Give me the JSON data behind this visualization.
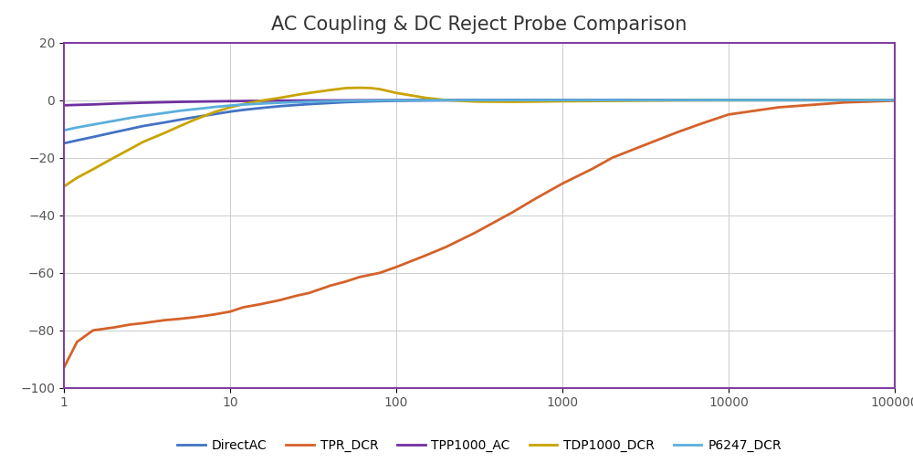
{
  "title": "AC Coupling & DC Reject Probe Comparison",
  "title_fontsize": 15,
  "xlim_log": [
    1,
    100000
  ],
  "ylim": [
    -100,
    20
  ],
  "yticks": [
    -100,
    -80,
    -60,
    -40,
    -20,
    0,
    20
  ],
  "xticks": [
    1,
    10,
    100,
    1000,
    10000,
    100000
  ],
  "background_color": "#ffffff",
  "plot_bg_color": "#ffffff",
  "border_color": "#8040a0",
  "grid_color": "#d0d0d0",
  "legend_labels": [
    "DirectAC",
    "TPR_DCR",
    "TPP1000_AC",
    "TDP1000_DCR",
    "P6247_DCR"
  ],
  "legend_colors": [
    "#4472c4",
    "#d4622a",
    "#7030a0",
    "#c8a400",
    "#5aafdb"
  ],
  "series": {
    "DirectAC": {
      "color": "#4472c4",
      "linewidth": 2.0,
      "x": [
        1,
        1.2,
        1.5,
        2,
        2.5,
        3,
        4,
        5,
        6,
        7,
        8,
        10,
        12,
        15,
        20,
        25,
        30,
        40,
        50,
        60,
        80,
        100,
        150,
        200,
        300,
        500,
        1000,
        2000,
        5000,
        10000,
        50000,
        100000
      ],
      "y": [
        -15.0,
        -14.0,
        -12.8,
        -11.2,
        -10.0,
        -9.0,
        -7.8,
        -6.8,
        -6.0,
        -5.4,
        -4.9,
        -4.0,
        -3.4,
        -2.8,
        -2.1,
        -1.7,
        -1.4,
        -1.0,
        -0.7,
        -0.55,
        -0.35,
        -0.22,
        -0.1,
        -0.06,
        -0.03,
        -0.01,
        -0.003,
        -0.001,
        0,
        0,
        0,
        0
      ]
    },
    "TPR_DCR": {
      "color": "#d4622a",
      "linewidth": 2.0,
      "x": [
        1,
        1.2,
        1.5,
        2,
        2.5,
        3,
        4,
        5,
        6,
        7,
        8,
        10,
        12,
        15,
        20,
        25,
        30,
        40,
        50,
        60,
        80,
        100,
        150,
        200,
        300,
        500,
        700,
        1000,
        1500,
        2000,
        3000,
        5000,
        7000,
        10000,
        20000,
        50000,
        100000
      ],
      "y": [
        -93,
        -84,
        -80,
        -79,
        -78,
        -77.5,
        -76.5,
        -76,
        -75.5,
        -75,
        -74.5,
        -73.5,
        -72,
        -71,
        -69.5,
        -68,
        -67,
        -64.5,
        -63,
        -61.5,
        -60,
        -58,
        -54,
        -51,
        -46,
        -39,
        -34,
        -29,
        -24,
        -20,
        -16,
        -11,
        -8,
        -5,
        -2.5,
        -0.8,
        -0.2
      ]
    },
    "TPP1000_AC": {
      "color": "#7030a0",
      "linewidth": 2.0,
      "x": [
        1,
        1.5,
        2,
        3,
        5,
        10,
        20,
        50,
        100,
        200,
        500,
        1000,
        5000,
        10000,
        100000
      ],
      "y": [
        -1.8,
        -1.5,
        -1.2,
        -0.9,
        -0.6,
        -0.35,
        -0.18,
        -0.07,
        -0.03,
        -0.01,
        -0.003,
        -0.001,
        0,
        0,
        0
      ]
    },
    "TDP1000_DCR": {
      "color": "#c8a400",
      "linewidth": 2.0,
      "x": [
        1,
        1.2,
        1.5,
        2,
        2.5,
        3,
        4,
        5,
        6,
        7,
        8,
        10,
        12,
        15,
        20,
        25,
        30,
        40,
        50,
        60,
        70,
        80,
        100,
        150,
        200,
        300,
        500,
        1000,
        5000,
        10000,
        100000
      ],
      "y": [
        -30,
        -27,
        -24,
        -20,
        -17,
        -14.5,
        -11.5,
        -9.0,
        -7.0,
        -5.5,
        -4.2,
        -2.5,
        -1.4,
        -0.3,
        0.8,
        1.8,
        2.5,
        3.5,
        4.2,
        4.3,
        4.2,
        3.8,
        2.5,
        0.8,
        0.0,
        -0.5,
        -0.6,
        -0.4,
        -0.1,
        -0.05,
        0
      ]
    },
    "P6247_DCR": {
      "color": "#5aafdb",
      "linewidth": 2.0,
      "x": [
        1,
        1.2,
        1.5,
        2,
        2.5,
        3,
        4,
        5,
        6,
        7,
        8,
        10,
        12,
        15,
        20,
        25,
        30,
        40,
        50,
        60,
        80,
        100,
        150,
        200,
        300,
        500,
        1000,
        2000,
        5000,
        10000,
        100000
      ],
      "y": [
        -10.5,
        -9.5,
        -8.5,
        -7.2,
        -6.2,
        -5.5,
        -4.5,
        -3.7,
        -3.2,
        -2.8,
        -2.4,
        -1.9,
        -1.55,
        -1.25,
        -0.9,
        -0.7,
        -0.55,
        -0.38,
        -0.27,
        -0.2,
        -0.13,
        -0.08,
        -0.04,
        -0.02,
        -0.01,
        -0.003,
        -0.001,
        0,
        0,
        0,
        0
      ]
    }
  }
}
